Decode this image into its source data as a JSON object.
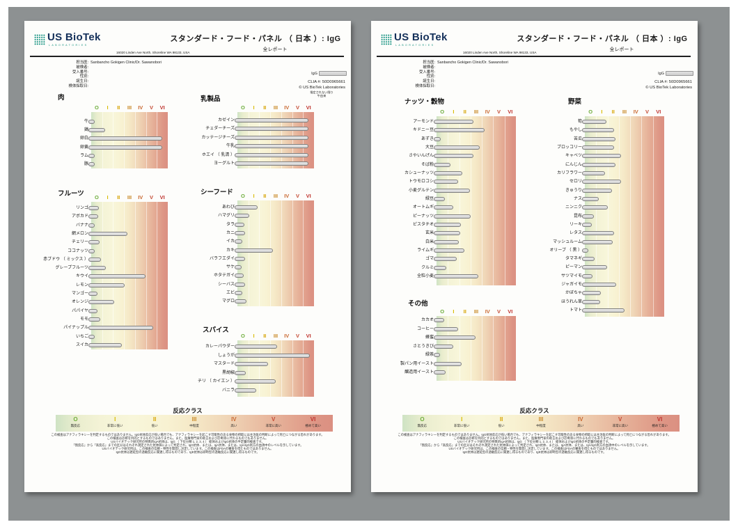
{
  "report": {
    "brand": "US BioTek",
    "brand_sub": "LABORATORIES",
    "address": "16020 Linden Ave North, Shoreline WA 98133, USA",
    "title": "スタンダード・フード・パネル （ 日本 ）: IgG",
    "subtitle": "全レポート",
    "fields": [
      {
        "label": "担当医:",
        "value": "Sanbancho Gokigen Clinic/Dr. Sawanobori"
      },
      {
        "label": "被検者:",
        "value": ""
      },
      {
        "label": "受入番号:",
        "value": ""
      },
      {
        "label": "性別:",
        "value": ""
      },
      {
        "label": "誕生日:",
        "value": ""
      },
      {
        "label": "検体採取日:",
        "value": ""
      }
    ],
    "sample_label": "IgG",
    "clia": "CLIA #: 50D0965661",
    "copyright": "© US BioTek Laboratories",
    "note_line1": "指定されない限り",
    "note_line2": "牛由来",
    "scale": {
      "letters": [
        "O",
        "I",
        "II",
        "III",
        "IV",
        "V",
        "VI"
      ],
      "colors": [
        "#6fae3d",
        "#d8bb00",
        "#d6a300",
        "#c98a28",
        "#c96a33",
        "#c44a33",
        "#bf332e"
      ]
    },
    "reaction": {
      "title": "反応クラス",
      "classes": [
        {
          "numeral": "O",
          "label": "無反応"
        },
        {
          "numeral": "I",
          "label": "非常に低い"
        },
        {
          "numeral": "II",
          "label": "低い"
        },
        {
          "numeral": "III",
          "label": "中程度"
        },
        {
          "numeral": "IV",
          "label": "高い"
        },
        {
          "numeral": "V",
          "label": "非常に高い"
        },
        {
          "numeral": "VI",
          "label": "極めて高い"
        }
      ]
    },
    "disclaimer": [
      "この検査はアナフィラキシーを判定するものではありません。IgG抗体反応が低い場合でも、アナフィラキシーを起こす可能性のある食物の摂取には主治医の判断によって死亡につながる恐れがあります。",
      "この検査は診断を目的とするものではありません。また、医療専門家の助言および診断等に代わるものでもありません。",
      "USバイオテック研究所の特異的IgA抗体は、IgG （ 下位分類 1, 2, 3, 4 ） 総体およびIgG抗体の半定量的検査です。",
      "「無反応」から「高反応」までの区分はそれぞれ測定された抗体価によって判定され、IgG抗体、または、IgA抗体、または、IgA/IgG両方の血清中のレベルを示しています。",
      "USバイオテック研究所は、この検査の信頼・特性を開発し決定しています。この検査はFDAの審査を得たものではありません。",
      "IgG抗体は遅延型の過敏反応に関連し得るものであり、IgE抗体は即時型の過敏反応に関連し得るものです。"
    ]
  },
  "pages": [
    {
      "sections": [
        {
          "id": "meat",
          "title": "肉",
          "items": [
            {
              "label": "牛",
              "value": 0.4
            },
            {
              "label": "鶏",
              "value": 1.4
            },
            {
              "label": "卵白",
              "value": 6.6
            },
            {
              "label": "卵黄",
              "value": 6.6
            },
            {
              "label": "ラム",
              "value": 0.4
            },
            {
              "label": "豚",
              "value": 0.35
            }
          ]
        },
        {
          "id": "dairy",
          "title": "乳製品",
          "items": [
            {
              "label": "カゼイン",
              "value": 6.6
            },
            {
              "label": "チェダーチーズ",
              "value": 6.6
            },
            {
              "label": "カッテージチーズ",
              "value": 6.6
            },
            {
              "label": "牛乳",
              "value": 6.6
            },
            {
              "label": "ホエイ （ 乳清 ）",
              "value": 6.6
            },
            {
              "label": "ヨーグルト",
              "value": 6.6
            }
          ]
        },
        {
          "id": "fruits",
          "title": "フルーツ",
          "items": [
            {
              "label": "リンゴ",
              "value": 0.85
            },
            {
              "label": "アボカド",
              "value": 0.75
            },
            {
              "label": "バナナ",
              "value": 0.4
            },
            {
              "label": "網メロン",
              "value": 3.45
            },
            {
              "label": "チェリー",
              "value": 0.9
            },
            {
              "label": "ココナッツ",
              "value": 0.45
            },
            {
              "label": "赤ブドウ （ ミックス ）",
              "value": 1.0
            },
            {
              "label": "グレープフルーツ",
              "value": 1.45
            },
            {
              "label": "キウイ",
              "value": 5.1
            },
            {
              "label": "レモン",
              "value": 3.15
            },
            {
              "label": "マンゴー",
              "value": 0.7
            },
            {
              "label": "オレンジ",
              "value": 2.25
            },
            {
              "label": "パパイヤ",
              "value": 0.7
            },
            {
              "label": "モモ",
              "value": 0.95
            },
            {
              "label": "パイナップル",
              "value": 5.8
            },
            {
              "label": "いちご",
              "value": 0.3
            },
            {
              "label": "スイカ",
              "value": 2.95
            }
          ]
        },
        {
          "id": "seafood",
          "title": "シーフード",
          "items": [
            {
              "label": "あわび",
              "value": 2.0
            },
            {
              "label": "ハマグリ",
              "value": 1.2
            },
            {
              "label": "タラ",
              "value": 0.75
            },
            {
              "label": "カニ",
              "value": 0.8
            },
            {
              "label": "イカ",
              "value": 0.55
            },
            {
              "label": "カキ",
              "value": 3.4
            },
            {
              "label": "バラフエダイ",
              "value": 0.8
            },
            {
              "label": "サケ",
              "value": 0.5
            },
            {
              "label": "ホタテガイ",
              "value": 0.7
            },
            {
              "label": "シーバス",
              "value": 0.85
            },
            {
              "label": "エビ",
              "value": 0.55
            },
            {
              "label": "マグロ",
              "value": 0.95
            }
          ]
        },
        {
          "id": "spices",
          "title": "スパイス",
          "items": [
            {
              "label": "カレーパウダー",
              "value": 3.75
            },
            {
              "label": "しょうが",
              "value": 6.75
            },
            {
              "label": "マスタード",
              "value": 2.9
            },
            {
              "label": "黒胡椒",
              "value": 0.9
            },
            {
              "label": "チリ （ カイエン ）",
              "value": 3.65
            },
            {
              "label": "バニラ",
              "value": 1.85
            }
          ]
        }
      ]
    },
    {
      "sections": [
        {
          "id": "nuts",
          "title": "ナッツ・穀物",
          "items": [
            {
              "label": "アーモンド",
              "value": 3.35
            },
            {
              "label": "キドニー豆",
              "value": 4.35
            },
            {
              "label": "あずき",
              "value": 0.5
            },
            {
              "label": "大豆",
              "value": 3.9
            },
            {
              "label": "さやいんげん",
              "value": 3.4
            },
            {
              "label": "そば粉",
              "value": 1.35
            },
            {
              "label": "カシューナッツ",
              "value": 2.4
            },
            {
              "label": "トウモロコシ",
              "value": 2.0
            },
            {
              "label": "小麦グルテン",
              "value": 3.05
            },
            {
              "label": "緑豆",
              "value": 0.85
            },
            {
              "label": "オートムギ",
              "value": 1.6
            },
            {
              "label": "ピーナッツ",
              "value": 3.15
            },
            {
              "label": "ピスタチオ",
              "value": 2.25
            },
            {
              "label": "玄米",
              "value": 2.2
            },
            {
              "label": "白米",
              "value": 2.1
            },
            {
              "label": "ライムギ",
              "value": 2.6
            },
            {
              "label": "ゴマ",
              "value": 1.9
            },
            {
              "label": "クルミ",
              "value": 1.0
            },
            {
              "label": "全粒小麦",
              "value": 3.8
            }
          ]
        },
        {
          "id": "other",
          "title": "その他",
          "items": [
            {
              "label": "カカオ",
              "value": 0.8
            },
            {
              "label": "コーヒー",
              "value": 2.0
            },
            {
              "label": "蜂蜜",
              "value": 3.55
            },
            {
              "label": "さとうきび",
              "value": 1.6
            },
            {
              "label": "緑茶",
              "value": 0.25
            },
            {
              "label": "製パン用イースト",
              "value": 2.35
            },
            {
              "label": "醸造用イースト",
              "value": 0.9
            }
          ]
        },
        {
          "id": "vegetables",
          "title": "野菜",
          "items": [
            {
              "label": "筍",
              "value": 2.0
            },
            {
              "label": "もやし",
              "value": 2.7
            },
            {
              "label": "苦瓜",
              "value": 2.85
            },
            {
              "label": "ブロッコリー",
              "value": 2.7
            },
            {
              "label": "キャベツ",
              "value": 3.3
            },
            {
              "label": "にんじん",
              "value": 2.85
            },
            {
              "label": "カリフラワー",
              "value": 1.9
            },
            {
              "label": "セロリ",
              "value": 3.3
            },
            {
              "label": "きゅうり",
              "value": 2.5
            },
            {
              "label": "ナス",
              "value": 1.35
            },
            {
              "label": "ニンニク",
              "value": 2.15
            },
            {
              "label": "昆布",
              "value": 0.9
            },
            {
              "label": "リーキ",
              "value": 0.75
            },
            {
              "label": "レタス",
              "value": 2.7
            },
            {
              "label": "マッシュルーム",
              "value": 2.6
            },
            {
              "label": "オリーブ （ 黒 ）",
              "value": 0.3
            },
            {
              "label": "タマネギ",
              "value": 1.0
            },
            {
              "label": "ピーマン",
              "value": 2.1
            },
            {
              "label": "サツマイモ",
              "value": 0.8
            },
            {
              "label": "ジャガイモ",
              "value": 2.9
            },
            {
              "label": "かぼちゃ",
              "value": 1.55
            },
            {
              "label": "ほうれん草",
              "value": 1.5
            },
            {
              "label": "トマト",
              "value": 3.6
            }
          ]
        }
      ]
    }
  ]
}
